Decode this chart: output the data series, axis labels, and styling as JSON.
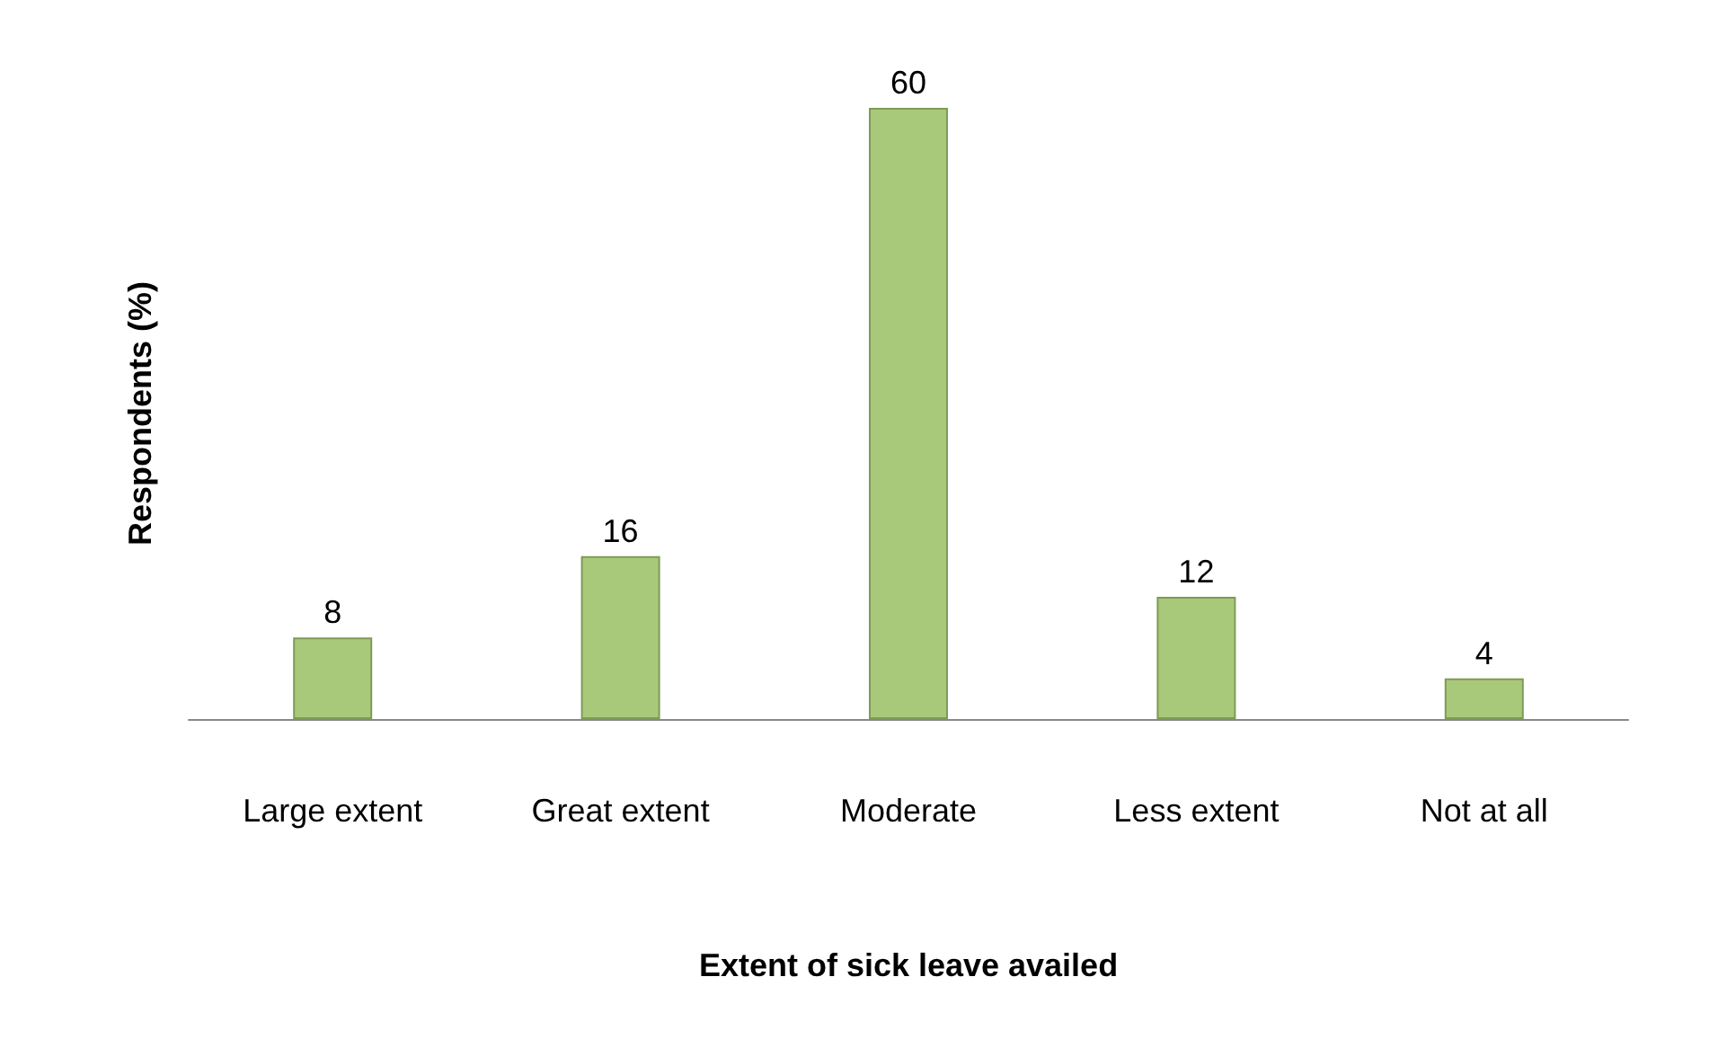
{
  "chart_data": {
    "type": "bar",
    "xlabel": "Extent of sick leave availed",
    "ylabel": "Respondents (%)",
    "categories": [
      "Large extent",
      "Great extent",
      "Moderate",
      "Less extent",
      "Not at all"
    ],
    "values": [
      8,
      16,
      60,
      12,
      4
    ],
    "color": "#a9c97a",
    "data_labels": true,
    "grid": false
  }
}
